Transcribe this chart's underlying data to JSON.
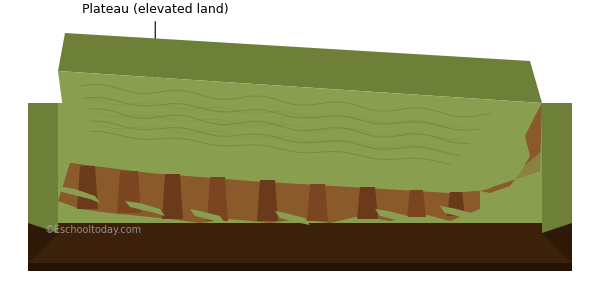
{
  "bg_color": "#ffffff",
  "col_green_plateau": "#8a9e50",
  "col_green_ground": "#8a9e50",
  "col_green_dark": "#6e8038",
  "col_brown_cliff": "#8B5A2B",
  "col_brown_dark": "#6B3A1B",
  "col_brown_base_front": "#3B200A",
  "col_brown_base_side": "#2e1808",
  "col_brown_base_bottom": "#241206",
  "col_wave": "#6e8038",
  "col_green_light": "#9aae58",
  "label_text": "Plateau (elevated land)",
  "copyright_text": "©Eschooltoday.com",
  "label_fontsize": 9,
  "copyright_fontsize": 7,
  "figsize": [
    6.0,
    2.81
  ],
  "dpi": 100
}
